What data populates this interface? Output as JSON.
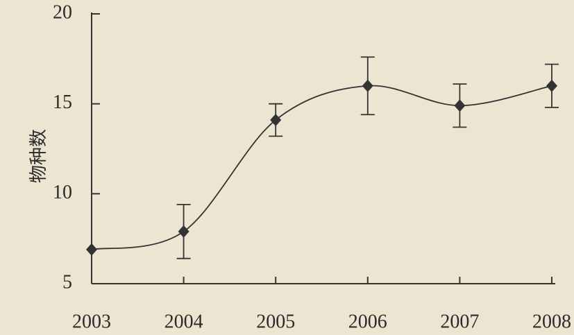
{
  "chart_data": {
    "type": "line",
    "y_label": "物种数",
    "categories": [
      "2003",
      "2004",
      "2005",
      "2006",
      "2007",
      "2008"
    ],
    "series": [
      {
        "values": [
          6.9,
          7.9,
          14.1,
          16.0,
          14.9,
          16.0
        ],
        "errors": [
          null,
          1.5,
          0.9,
          1.6,
          1.2,
          1.2
        ],
        "color": "#333333"
      }
    ],
    "ylim": [
      5,
      20
    ],
    "yticks": [
      5,
      10,
      15,
      20
    ],
    "grid": false
  }
}
